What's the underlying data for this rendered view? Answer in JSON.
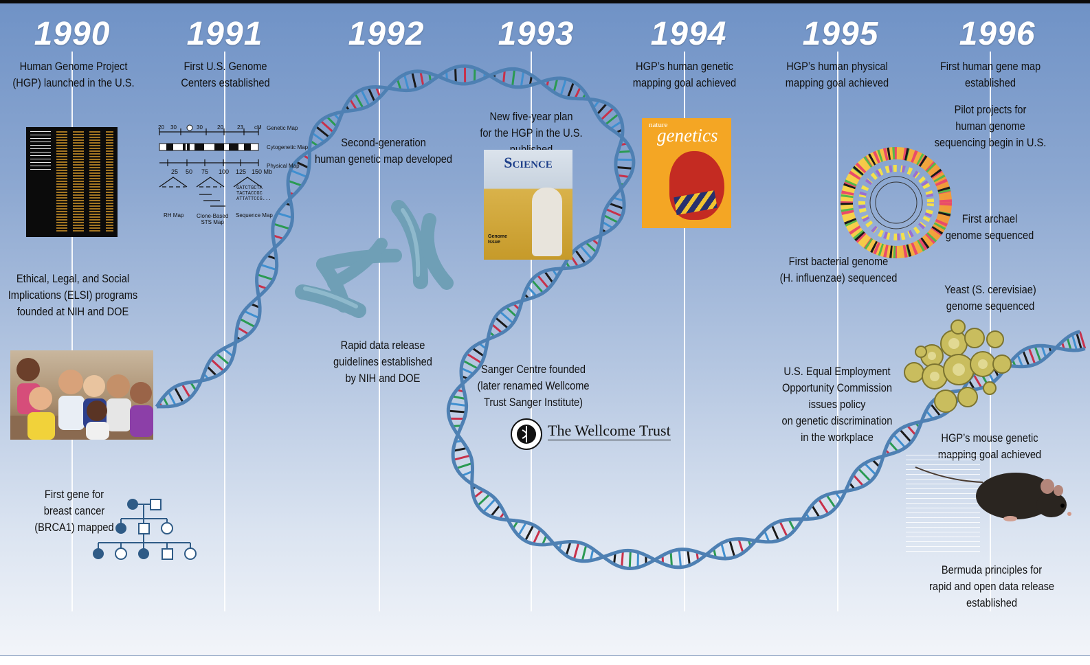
{
  "years": [
    "1990",
    "1991",
    "1992",
    "1993",
    "1994",
    "1995",
    "1996"
  ],
  "events": {
    "hgp_launched": "Human Genome Project\n(HGP) launched in the U.S.",
    "elsi": "Ethical, Legal, and Social\nImplications (ELSI) programs\nfounded at NIH and DOE",
    "brca1": "First gene for\nbreast cancer\n(BRCA1) mapped",
    "genome_centers": "First U.S. Genome\nCenters established",
    "second_gen_map": "Second-generation\nhuman genetic map developed",
    "rapid_data_release": "Rapid data release\nguidelines established\nby NIH and DOE",
    "five_year_plan": "New five-year plan\nfor the HGP in the U.S. published",
    "sanger_centre": "Sanger Centre founded\n(later renamed Wellcome\nTrust Sanger Institute)",
    "genetic_mapping_goal": "HGP’s human genetic\nmapping goal achieved",
    "physical_mapping_goal": "HGP’s human physical\nmapping goal achieved",
    "bacterial_genome": "First bacterial genome\n(H. influenzae) sequenced",
    "eeoc_policy": "U.S. Equal Employment\nOpportunity Commission\nissues policy\non genetic discrimination\nin the workplace",
    "gene_map": "First human gene map established",
    "pilot_projects": "Pilot projects for\nhuman genome\nsequencing begin in U.S.",
    "archaeal_genome": "First archael\ngenome sequenced",
    "yeast_genome": "Yeast (S. cerevisiae)\ngenome sequenced",
    "mouse_mapping_goal": "HGP’s mouse genetic\nmapping goal achieved",
    "bermuda": "Bermuda principles for\nrapid and open data release established"
  },
  "map_figure": {
    "row_labels": [
      "Genetic Map",
      "Cytogenetic Map",
      "Physical Map"
    ],
    "top_ticks": [
      "20",
      "30",
      "30",
      "20",
      "23",
      "cM"
    ],
    "bottom_ticks": [
      "25",
      "50",
      "75",
      "100",
      "125",
      "150 Mb"
    ],
    "sub_labels": [
      "RH Map",
      "Clone-Based\nSTS Map",
      "Sequence Map"
    ],
    "sequence": "GATCTGCTA\nTACTACCGC\nATTATTCCG..."
  },
  "covers": {
    "science": "Science",
    "science_tag": "Genome\nIssue",
    "nature_small": "nature",
    "nature_big": "genetics",
    "wellcome": "The Wellcome Trust"
  },
  "colors": {
    "background_top": "#6f92c6",
    "background_bottom": "#f4f6fa",
    "year": "#ffffff",
    "helix": "#4e80b3",
    "rungs": [
      "#c8304a",
      "#2a9a52",
      "#3f8fd0",
      "#1a1a1a"
    ]
  }
}
